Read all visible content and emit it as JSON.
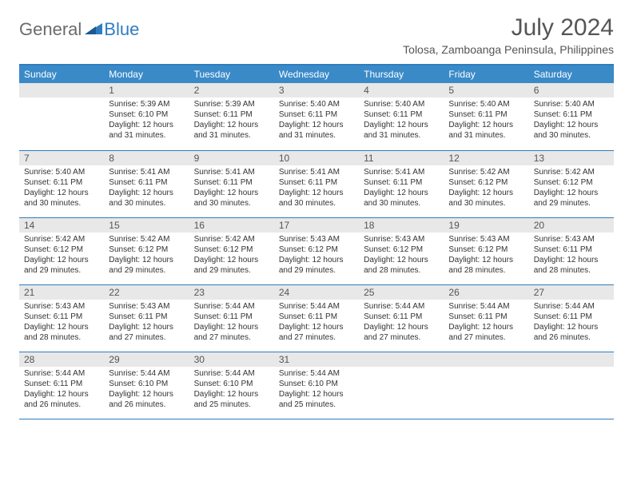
{
  "logo": {
    "general": "General",
    "blue": "Blue"
  },
  "title": "July 2024",
  "subtitle": "Tolosa, Zamboanga Peninsula, Philippines",
  "colors": {
    "header_bg": "#3a8ac8",
    "border": "#2f7dc0",
    "daynum_bg": "#e8e8e8",
    "text": "#333333",
    "title_text": "#555555"
  },
  "day_labels": [
    "Sunday",
    "Monday",
    "Tuesday",
    "Wednesday",
    "Thursday",
    "Friday",
    "Saturday"
  ],
  "weeks": [
    [
      {
        "n": "",
        "lines": []
      },
      {
        "n": "1",
        "lines": [
          "Sunrise: 5:39 AM",
          "Sunset: 6:10 PM",
          "Daylight: 12 hours",
          "and 31 minutes."
        ]
      },
      {
        "n": "2",
        "lines": [
          "Sunrise: 5:39 AM",
          "Sunset: 6:11 PM",
          "Daylight: 12 hours",
          "and 31 minutes."
        ]
      },
      {
        "n": "3",
        "lines": [
          "Sunrise: 5:40 AM",
          "Sunset: 6:11 PM",
          "Daylight: 12 hours",
          "and 31 minutes."
        ]
      },
      {
        "n": "4",
        "lines": [
          "Sunrise: 5:40 AM",
          "Sunset: 6:11 PM",
          "Daylight: 12 hours",
          "and 31 minutes."
        ]
      },
      {
        "n": "5",
        "lines": [
          "Sunrise: 5:40 AM",
          "Sunset: 6:11 PM",
          "Daylight: 12 hours",
          "and 31 minutes."
        ]
      },
      {
        "n": "6",
        "lines": [
          "Sunrise: 5:40 AM",
          "Sunset: 6:11 PM",
          "Daylight: 12 hours",
          "and 30 minutes."
        ]
      }
    ],
    [
      {
        "n": "7",
        "lines": [
          "Sunrise: 5:40 AM",
          "Sunset: 6:11 PM",
          "Daylight: 12 hours",
          "and 30 minutes."
        ]
      },
      {
        "n": "8",
        "lines": [
          "Sunrise: 5:41 AM",
          "Sunset: 6:11 PM",
          "Daylight: 12 hours",
          "and 30 minutes."
        ]
      },
      {
        "n": "9",
        "lines": [
          "Sunrise: 5:41 AM",
          "Sunset: 6:11 PM",
          "Daylight: 12 hours",
          "and 30 minutes."
        ]
      },
      {
        "n": "10",
        "lines": [
          "Sunrise: 5:41 AM",
          "Sunset: 6:11 PM",
          "Daylight: 12 hours",
          "and 30 minutes."
        ]
      },
      {
        "n": "11",
        "lines": [
          "Sunrise: 5:41 AM",
          "Sunset: 6:11 PM",
          "Daylight: 12 hours",
          "and 30 minutes."
        ]
      },
      {
        "n": "12",
        "lines": [
          "Sunrise: 5:42 AM",
          "Sunset: 6:12 PM",
          "Daylight: 12 hours",
          "and 30 minutes."
        ]
      },
      {
        "n": "13",
        "lines": [
          "Sunrise: 5:42 AM",
          "Sunset: 6:12 PM",
          "Daylight: 12 hours",
          "and 29 minutes."
        ]
      }
    ],
    [
      {
        "n": "14",
        "lines": [
          "Sunrise: 5:42 AM",
          "Sunset: 6:12 PM",
          "Daylight: 12 hours",
          "and 29 minutes."
        ]
      },
      {
        "n": "15",
        "lines": [
          "Sunrise: 5:42 AM",
          "Sunset: 6:12 PM",
          "Daylight: 12 hours",
          "and 29 minutes."
        ]
      },
      {
        "n": "16",
        "lines": [
          "Sunrise: 5:42 AM",
          "Sunset: 6:12 PM",
          "Daylight: 12 hours",
          "and 29 minutes."
        ]
      },
      {
        "n": "17",
        "lines": [
          "Sunrise: 5:43 AM",
          "Sunset: 6:12 PM",
          "Daylight: 12 hours",
          "and 29 minutes."
        ]
      },
      {
        "n": "18",
        "lines": [
          "Sunrise: 5:43 AM",
          "Sunset: 6:12 PM",
          "Daylight: 12 hours",
          "and 28 minutes."
        ]
      },
      {
        "n": "19",
        "lines": [
          "Sunrise: 5:43 AM",
          "Sunset: 6:12 PM",
          "Daylight: 12 hours",
          "and 28 minutes."
        ]
      },
      {
        "n": "20",
        "lines": [
          "Sunrise: 5:43 AM",
          "Sunset: 6:11 PM",
          "Daylight: 12 hours",
          "and 28 minutes."
        ]
      }
    ],
    [
      {
        "n": "21",
        "lines": [
          "Sunrise: 5:43 AM",
          "Sunset: 6:11 PM",
          "Daylight: 12 hours",
          "and 28 minutes."
        ]
      },
      {
        "n": "22",
        "lines": [
          "Sunrise: 5:43 AM",
          "Sunset: 6:11 PM",
          "Daylight: 12 hours",
          "and 27 minutes."
        ]
      },
      {
        "n": "23",
        "lines": [
          "Sunrise: 5:44 AM",
          "Sunset: 6:11 PM",
          "Daylight: 12 hours",
          "and 27 minutes."
        ]
      },
      {
        "n": "24",
        "lines": [
          "Sunrise: 5:44 AM",
          "Sunset: 6:11 PM",
          "Daylight: 12 hours",
          "and 27 minutes."
        ]
      },
      {
        "n": "25",
        "lines": [
          "Sunrise: 5:44 AM",
          "Sunset: 6:11 PM",
          "Daylight: 12 hours",
          "and 27 minutes."
        ]
      },
      {
        "n": "26",
        "lines": [
          "Sunrise: 5:44 AM",
          "Sunset: 6:11 PM",
          "Daylight: 12 hours",
          "and 27 minutes."
        ]
      },
      {
        "n": "27",
        "lines": [
          "Sunrise: 5:44 AM",
          "Sunset: 6:11 PM",
          "Daylight: 12 hours",
          "and 26 minutes."
        ]
      }
    ],
    [
      {
        "n": "28",
        "lines": [
          "Sunrise: 5:44 AM",
          "Sunset: 6:11 PM",
          "Daylight: 12 hours",
          "and 26 minutes."
        ]
      },
      {
        "n": "29",
        "lines": [
          "Sunrise: 5:44 AM",
          "Sunset: 6:10 PM",
          "Daylight: 12 hours",
          "and 26 minutes."
        ]
      },
      {
        "n": "30",
        "lines": [
          "Sunrise: 5:44 AM",
          "Sunset: 6:10 PM",
          "Daylight: 12 hours",
          "and 25 minutes."
        ]
      },
      {
        "n": "31",
        "lines": [
          "Sunrise: 5:44 AM",
          "Sunset: 6:10 PM",
          "Daylight: 12 hours",
          "and 25 minutes."
        ]
      },
      {
        "n": "",
        "lines": []
      },
      {
        "n": "",
        "lines": []
      },
      {
        "n": "",
        "lines": []
      }
    ]
  ]
}
